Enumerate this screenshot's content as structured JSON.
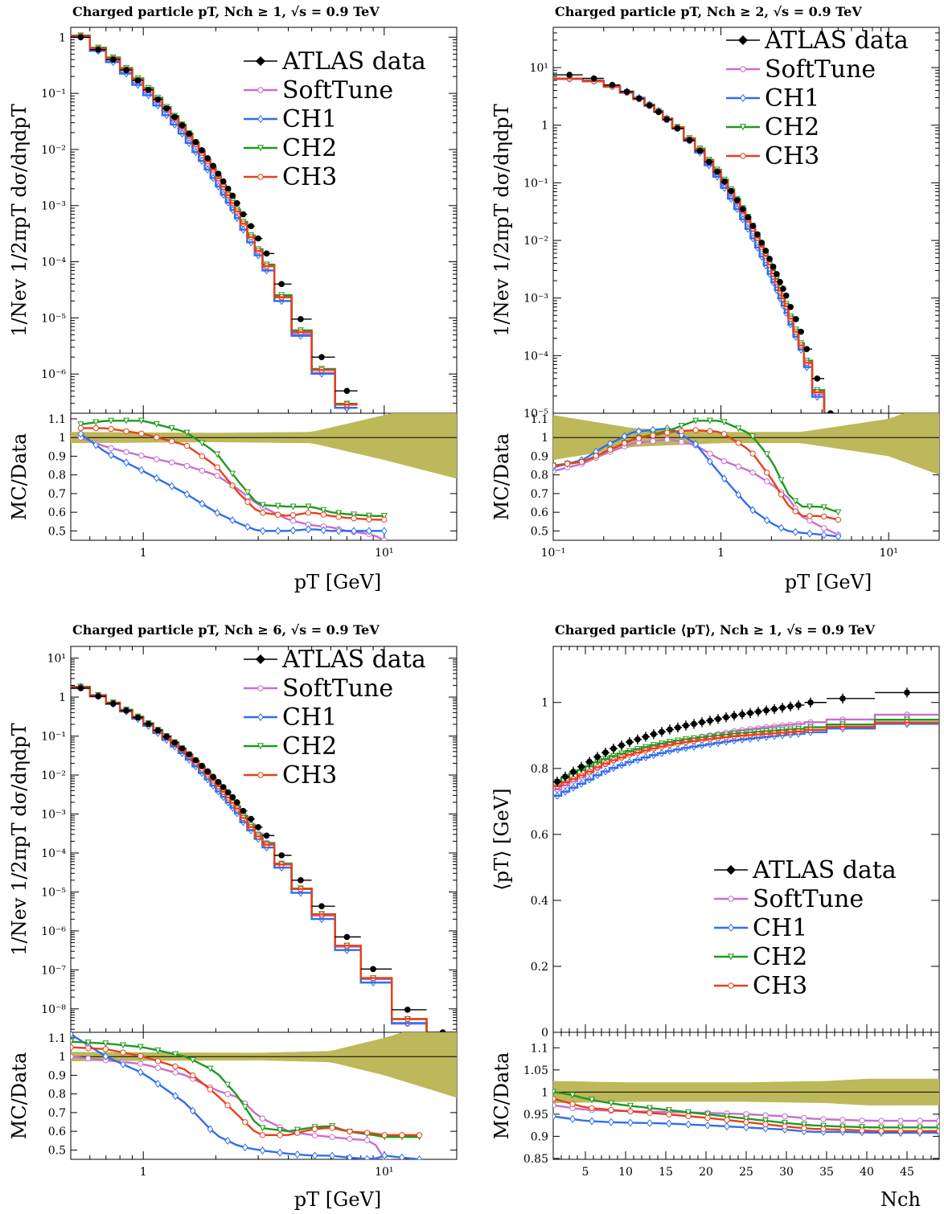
{
  "colors": {
    "data": "#000000",
    "SoftTune": "#c86ed0",
    "CH1": "#2f6ef0",
    "CH2": "#1f9a1f",
    "CH3": "#e8401c",
    "band": "#bdb85a"
  },
  "legend": {
    "data": "ATLAS data",
    "series": [
      {
        "key": "SoftTune",
        "label": "SoftTune",
        "marker": "circle"
      },
      {
        "key": "CH1",
        "label": "CH1",
        "marker": "diamond"
      },
      {
        "key": "CH2",
        "label": "CH2",
        "marker": "triangle"
      },
      {
        "key": "CH3",
        "label": "CH3",
        "marker": "circle"
      }
    ]
  },
  "chart_data": [
    {
      "id": "p1",
      "type": "line",
      "title": "Charged particle pT, Nch ≥ 1, √s = 0.9 TeV",
      "xlabel": "pT [GeV]",
      "ylabel": "1/Nev 1/2πpT dσ/dηdpT",
      "ratio_ylabel": "MC/Data",
      "xscale": "log",
      "xlim": [
        0.5,
        20
      ],
      "yscale": "log",
      "ylim": [
        2e-07,
        1.5
      ],
      "ratio_ylim": [
        0.45,
        1.13
      ],
      "xticks": [
        {
          "v": 1,
          "label": "1"
        },
        {
          "v": 10,
          "label": "10¹"
        }
      ],
      "yticks": [
        {
          "v": 1,
          "label": "1"
        },
        {
          "v": 0.1,
          "label": "10⁻¹"
        },
        {
          "v": 0.01,
          "label": "10⁻²"
        },
        {
          "v": 0.001,
          "label": "10⁻³"
        },
        {
          "v": 0.0001,
          "label": "10⁻⁴"
        },
        {
          "v": 1e-05,
          "label": "10⁻⁵"
        },
        {
          "v": 1e-06,
          "label": "10⁻⁶"
        }
      ],
      "ratio_yticks": [
        0.5,
        0.6,
        0.7,
        0.8,
        0.9,
        1.0,
        1.1
      ],
      "ratio_ylabels": [
        "0.5",
        "0.6",
        "0.7",
        "0.8",
        "0.9",
        "1",
        "1.1"
      ],
      "data_x": [
        0.55,
        0.65,
        0.75,
        0.85,
        0.95,
        1.05,
        1.15,
        1.25,
        1.35,
        1.45,
        1.55,
        1.65,
        1.75,
        1.85,
        1.95,
        2.05,
        2.15,
        2.25,
        2.35,
        2.45,
        2.6,
        2.8,
        3.0,
        3.25,
        3.75,
        4.5,
        5.5,
        7.0
      ],
      "data_y": [
        1.0,
        0.6,
        0.4,
        0.26,
        0.17,
        0.115,
        0.078,
        0.054,
        0.038,
        0.027,
        0.019,
        0.0135,
        0.0097,
        0.007,
        0.0051,
        0.0037,
        0.0027,
        0.002,
        0.0015,
        0.0011,
        0.0007,
        0.00043,
        0.00026,
        0.00014,
        4e-05,
        9.5e-06,
        2e-06,
        5e-07
      ],
      "ratio_x": [
        0.55,
        0.7,
        1.0,
        1.5,
        2.0,
        2.5,
        3.0,
        4.0,
        5.0,
        6.0,
        7.0,
        9.0,
        10.0
      ],
      "ratio_series": {
        "SoftTune": [
          1.0,
          0.95,
          0.9,
          0.85,
          0.8,
          0.72,
          0.64,
          0.56,
          0.53,
          0.52,
          0.5,
          0.48,
          0.45
        ],
        "CH1": [
          1.02,
          0.92,
          0.82,
          0.7,
          0.6,
          0.54,
          0.5,
          0.5,
          0.51,
          0.5,
          0.5,
          0.5,
          0.5
        ],
        "CH2": [
          1.07,
          1.09,
          1.09,
          1.03,
          0.92,
          0.76,
          0.64,
          0.63,
          0.63,
          0.6,
          0.59,
          0.58,
          0.58
        ],
        "CH3": [
          1.05,
          1.05,
          1.02,
          0.96,
          0.85,
          0.7,
          0.6,
          0.58,
          0.6,
          0.58,
          0.57,
          0.56,
          0.56
        ]
      },
      "band_x": [
        0.5,
        2.0,
        5.0,
        10.0,
        20.0
      ],
      "band_halfwidth": [
        0.03,
        0.025,
        0.03,
        0.12,
        0.22
      ]
    },
    {
      "id": "p2",
      "type": "line",
      "title": "Charged particle pT, Nch ≥ 2, √s = 0.9 TeV",
      "xlabel": "pT [GeV]",
      "ylabel": "1/Nev 1/2πpT dσ/dηdpT",
      "ratio_ylabel": "MC/Data",
      "xscale": "log",
      "xlim": [
        0.1,
        20
      ],
      "yscale": "log",
      "ylim": [
        1e-05,
        50
      ],
      "ratio_ylim": [
        0.45,
        1.13
      ],
      "xticks": [
        {
          "v": 0.1,
          "label": "10⁻¹"
        },
        {
          "v": 1,
          "label": "1"
        },
        {
          "v": 10,
          "label": "10¹"
        }
      ],
      "yticks": [
        {
          "v": 10,
          "label": "10¹"
        },
        {
          "v": 1,
          "label": "1"
        },
        {
          "v": 0.1,
          "label": "10⁻¹"
        },
        {
          "v": 0.01,
          "label": "10⁻²"
        },
        {
          "v": 0.001,
          "label": "10⁻³"
        },
        {
          "v": 0.0001,
          "label": "10⁻⁴"
        },
        {
          "v": 1e-05,
          "label": "10⁻⁵"
        }
      ],
      "ratio_yticks": [
        0.5,
        0.6,
        0.7,
        0.8,
        0.9,
        1.0,
        1.1
      ],
      "ratio_ylabels": [
        "0.5",
        "0.6",
        "0.7",
        "0.8",
        "0.9",
        "1",
        "1.1"
      ],
      "data_x": [
        0.125,
        0.175,
        0.225,
        0.275,
        0.325,
        0.375,
        0.425,
        0.475,
        0.55,
        0.65,
        0.75,
        0.85,
        0.95,
        1.05,
        1.15,
        1.25,
        1.35,
        1.45,
        1.55,
        1.65,
        1.75,
        1.85,
        1.95,
        2.05,
        2.15,
        2.25,
        2.35,
        2.45,
        2.6,
        2.8,
        3.0,
        3.25,
        3.75,
        4.5
      ],
      "data_y": [
        7.5,
        6.5,
        5.0,
        3.8,
        2.9,
        2.2,
        1.7,
        1.25,
        0.88,
        0.55,
        0.36,
        0.23,
        0.155,
        0.105,
        0.072,
        0.05,
        0.035,
        0.025,
        0.0178,
        0.0127,
        0.0091,
        0.0066,
        0.0048,
        0.0035,
        0.0026,
        0.0019,
        0.00145,
        0.0011,
        0.0007,
        0.00043,
        0.00026,
        0.00013,
        4e-05,
        1e-05
      ],
      "ratio_x": [
        0.1,
        0.15,
        0.2,
        0.3,
        0.5,
        0.7,
        1.0,
        1.5,
        2.0,
        2.5,
        3.0,
        4.0,
        5.0
      ],
      "ratio_series": {
        "SoftTune": [
          0.82,
          0.86,
          0.91,
          0.97,
          0.99,
          0.96,
          0.88,
          0.82,
          0.75,
          0.68,
          0.58,
          0.52,
          0.48
        ],
        "CH1": [
          0.84,
          0.88,
          0.95,
          1.03,
          1.05,
          0.97,
          0.8,
          0.62,
          0.54,
          0.5,
          0.49,
          0.48,
          0.47
        ],
        "CH2": [
          0.85,
          0.87,
          0.92,
          0.99,
          1.04,
          1.09,
          1.09,
          1.02,
          0.88,
          0.7,
          0.63,
          0.63,
          0.6
        ],
        "CH3": [
          0.85,
          0.87,
          0.92,
          0.99,
          1.03,
          1.04,
          1.03,
          0.93,
          0.78,
          0.64,
          0.58,
          0.58,
          0.56
        ]
      },
      "band_x": [
        0.1,
        0.3,
        1.0,
        3.0,
        10.0,
        20.0
      ],
      "band_halfwidth": [
        0.12,
        0.05,
        0.03,
        0.03,
        0.1,
        0.2
      ]
    },
    {
      "id": "p3",
      "type": "line",
      "title": "Charged particle pT, Nch ≥ 6, √s = 0.9 TeV",
      "xlabel": "pT [GeV]",
      "ylabel": "1/Nev 1/2πpT dσ/dηdpT",
      "ratio_ylabel": "MC/Data",
      "xscale": "log",
      "xlim": [
        0.5,
        20
      ],
      "yscale": "log",
      "ylim": [
        2.5e-09,
        20
      ],
      "ratio_ylim": [
        0.45,
        1.13
      ],
      "xticks": [
        {
          "v": 1,
          "label": "1"
        },
        {
          "v": 10,
          "label": "10¹"
        }
      ],
      "yticks": [
        {
          "v": 10,
          "label": "10¹"
        },
        {
          "v": 1,
          "label": "1"
        },
        {
          "v": 0.1,
          "label": "10⁻¹"
        },
        {
          "v": 0.01,
          "label": "10⁻²"
        },
        {
          "v": 0.001,
          "label": "10⁻³"
        },
        {
          "v": 0.0001,
          "label": "10⁻⁴"
        },
        {
          "v": 1e-05,
          "label": "10⁻⁵"
        },
        {
          "v": 1e-06,
          "label": "10⁻⁶"
        },
        {
          "v": 1e-07,
          "label": "10⁻⁷"
        },
        {
          "v": 1e-08,
          "label": "10⁻⁸"
        }
      ],
      "ratio_yticks": [
        0.5,
        0.6,
        0.7,
        0.8,
        0.9,
        1.0,
        1.1
      ],
      "ratio_ylabels": [
        "0.5",
        "0.6",
        "0.7",
        "0.8",
        "0.9",
        "1",
        "1.1"
      ],
      "data_x": [
        0.55,
        0.65,
        0.75,
        0.85,
        0.95,
        1.05,
        1.15,
        1.25,
        1.35,
        1.45,
        1.55,
        1.65,
        1.75,
        1.85,
        1.95,
        2.05,
        2.15,
        2.25,
        2.35,
        2.45,
        2.6,
        2.8,
        3.0,
        3.25,
        3.75,
        4.5,
        5.5,
        7.0,
        9.0,
        12.5,
        17.5
      ],
      "data_y": [
        1.7,
        1.05,
        0.68,
        0.45,
        0.3,
        0.205,
        0.14,
        0.097,
        0.068,
        0.048,
        0.034,
        0.024,
        0.0172,
        0.0124,
        0.009,
        0.0066,
        0.0049,
        0.0036,
        0.0027,
        0.002,
        0.0012,
        0.00075,
        0.00046,
        0.00028,
        8.7e-05,
        2e-05,
        4.3e-06,
        7e-07,
        1.05e-07,
        9.5e-09,
        2.5e-09
      ],
      "ratio_x": [
        0.5,
        0.7,
        1.0,
        1.5,
        2.0,
        2.5,
        3.0,
        4.0,
        5.0,
        6.0,
        7.0,
        9.0,
        10.0,
        14.0
      ],
      "ratio_series": {
        "SoftTune": [
          1.0,
          0.98,
          0.96,
          0.9,
          0.82,
          0.78,
          0.68,
          0.6,
          0.58,
          0.57,
          0.56,
          0.55,
          0.45,
          0.43
        ],
        "CH1": [
          1.12,
          1.0,
          0.91,
          0.75,
          0.58,
          0.52,
          0.5,
          0.48,
          0.47,
          0.47,
          0.46,
          0.45,
          0.47,
          0.45
        ],
        "CH2": [
          1.08,
          1.07,
          1.05,
          1.0,
          0.92,
          0.78,
          0.62,
          0.6,
          0.62,
          0.63,
          0.6,
          0.58,
          0.57,
          0.57
        ],
        "CH3": [
          1.05,
          1.04,
          1.0,
          0.93,
          0.8,
          0.68,
          0.58,
          0.58,
          0.61,
          0.62,
          0.6,
          0.59,
          0.58,
          0.58
        ]
      },
      "band_x": [
        0.5,
        3.0,
        6.0,
        10.0,
        20.0
      ],
      "band_halfwidth": [
        0.025,
        0.02,
        0.03,
        0.1,
        0.22
      ]
    },
    {
      "id": "p4",
      "type": "line",
      "title": "Charged particle ⟨pT⟩, Nch ≥ 1, √s = 0.9 TeV",
      "xlabel": "Nch",
      "ylabel": "⟨pT⟩ [GeV]",
      "ratio_ylabel": "MC/Data",
      "xscale": "linear",
      "xlim": [
        1,
        49
      ],
      "yscale": "linear",
      "ylim": [
        0,
        1.17
      ],
      "ratio_ylim": [
        0.848,
        1.135
      ],
      "xticks": [
        {
          "v": 5,
          "label": "5"
        },
        {
          "v": 10,
          "label": "10"
        },
        {
          "v": 15,
          "label": "15"
        },
        {
          "v": 20,
          "label": "20"
        },
        {
          "v": 25,
          "label": "25"
        },
        {
          "v": 30,
          "label": "30"
        },
        {
          "v": 35,
          "label": "35"
        },
        {
          "v": 40,
          "label": "40"
        },
        {
          "v": 45,
          "label": "45"
        }
      ],
      "yticks": [
        {
          "v": 0,
          "label": "0"
        },
        {
          "v": 0.2,
          "label": "0.2"
        },
        {
          "v": 0.4,
          "label": "0.4"
        },
        {
          "v": 0.6,
          "label": "0.6"
        },
        {
          "v": 0.8,
          "label": "0.8"
        },
        {
          "v": 1.0,
          "label": "1"
        }
      ],
      "ratio_yticks": [
        0.85,
        0.9,
        0.95,
        1.0,
        1.05,
        1.1
      ],
      "ratio_ylabels": [
        "0.85",
        "0.9",
        "0.95",
        "1",
        "1.05",
        "1.1"
      ],
      "data_x": [
        1.5,
        2.5,
        3.5,
        4.5,
        5.5,
        6.5,
        7.5,
        8.5,
        9.5,
        10.5,
        11.5,
        12.5,
        13.5,
        14.5,
        15.5,
        16.5,
        17.5,
        18.5,
        19.5,
        20.5,
        21.5,
        22.5,
        23.5,
        24.5,
        25.5,
        26.5,
        27.5,
        28.5,
        29.5,
        30.5,
        31.5,
        33.0,
        37.0,
        45.0
      ],
      "data_y": [
        0.76,
        0.775,
        0.79,
        0.805,
        0.82,
        0.835,
        0.848,
        0.86,
        0.87,
        0.88,
        0.888,
        0.896,
        0.904,
        0.911,
        0.918,
        0.924,
        0.93,
        0.935,
        0.94,
        0.945,
        0.95,
        0.955,
        0.96,
        0.964,
        0.968,
        0.972,
        0.976,
        0.98,
        0.984,
        0.988,
        0.992,
        1.0,
        1.012,
        1.03
      ],
      "ratio_x": [
        1,
        3,
        5,
        8,
        10,
        15,
        20,
        25,
        30,
        33,
        37,
        41,
        49
      ],
      "ratio_series": {
        "SoftTune": [
          0.97,
          0.965,
          0.96,
          0.958,
          0.957,
          0.955,
          0.953,
          0.95,
          0.945,
          0.94,
          0.937,
          0.935,
          0.935
        ],
        "CH1": [
          0.945,
          0.94,
          0.935,
          0.932,
          0.931,
          0.929,
          0.925,
          0.92,
          0.915,
          0.91,
          0.91,
          0.908,
          0.908
        ],
        "CH2": [
          1.0,
          0.995,
          0.985,
          0.975,
          0.97,
          0.96,
          0.95,
          0.94,
          0.93,
          0.925,
          0.922,
          0.92,
          0.92
        ],
        "CH3": [
          0.985,
          0.975,
          0.965,
          0.96,
          0.957,
          0.95,
          0.942,
          0.932,
          0.922,
          0.917,
          0.915,
          0.912,
          0.912
        ]
      },
      "band_x": [
        1,
        10,
        25,
        35,
        40,
        49
      ],
      "band_halfwidth": [
        0.025,
        0.022,
        0.022,
        0.025,
        0.03,
        0.03
      ]
    }
  ]
}
